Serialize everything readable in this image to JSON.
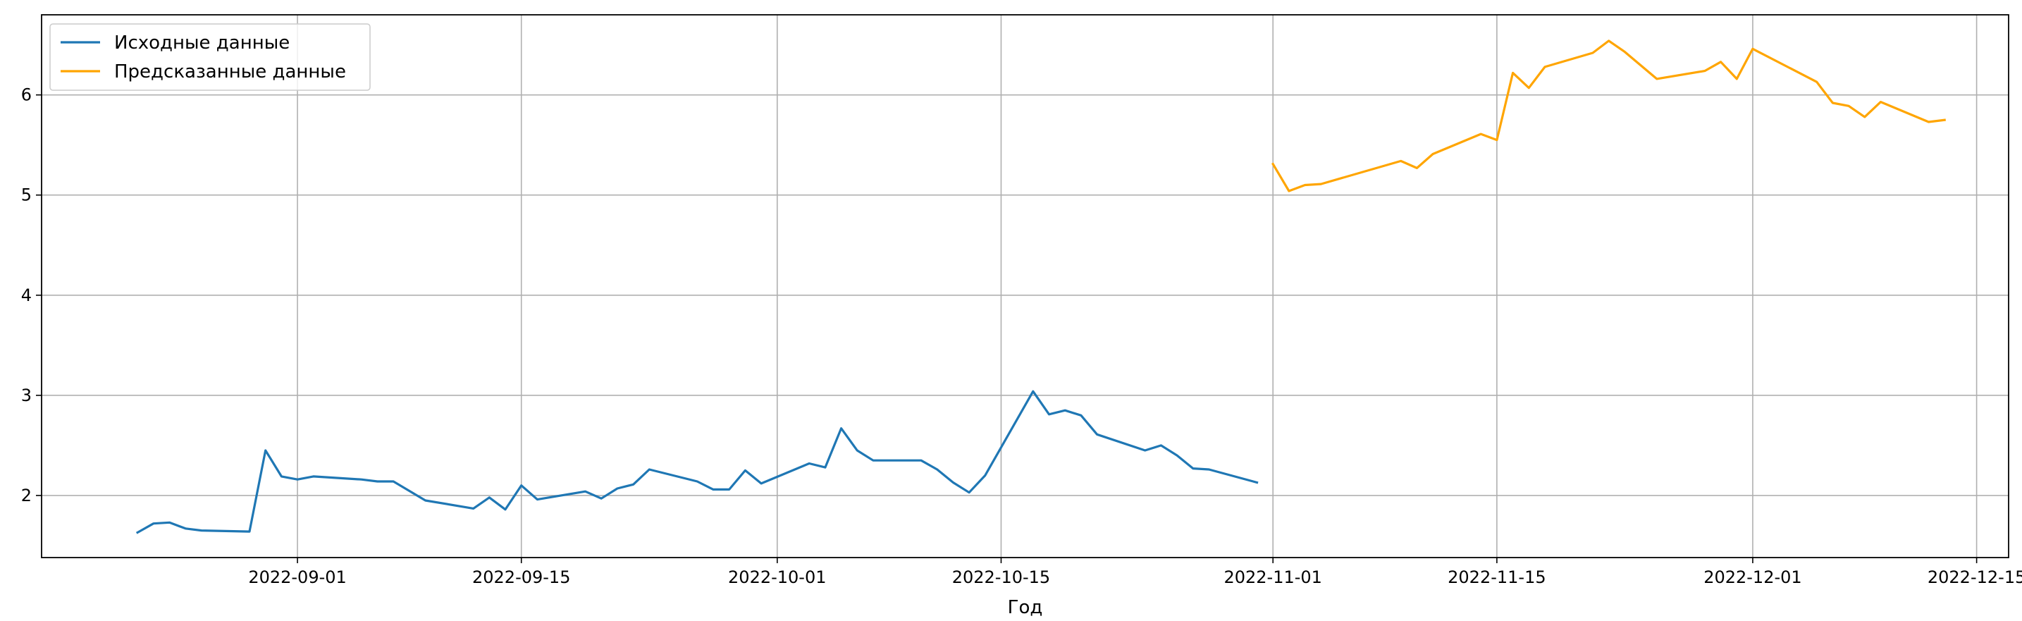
{
  "chart_data": {
    "type": "line",
    "xlabel": "Год",
    "ylabel": "",
    "grid": true,
    "legend_position": "top-left",
    "xlim": [
      "2022-08-16",
      "2022-12-17"
    ],
    "ylim": [
      1.38,
      6.8
    ],
    "x_ticks": [
      "2022-09-01",
      "2022-09-15",
      "2022-10-01",
      "2022-10-15",
      "2022-11-01",
      "2022-11-15",
      "2022-12-01",
      "2022-12-15"
    ],
    "y_ticks": [
      2,
      3,
      4,
      5,
      6
    ],
    "series": [
      {
        "name": "Исходные данные",
        "color": "#1f77b4",
        "points": [
          [
            "2022-08-22",
            1.63
          ],
          [
            "2022-08-23",
            1.72
          ],
          [
            "2022-08-24",
            1.73
          ],
          [
            "2022-08-25",
            1.67
          ],
          [
            "2022-08-26",
            1.65
          ],
          [
            "2022-08-29",
            1.64
          ],
          [
            "2022-08-30",
            2.45
          ],
          [
            "2022-08-31",
            2.19
          ],
          [
            "2022-09-01",
            2.16
          ],
          [
            "2022-09-02",
            2.19
          ],
          [
            "2022-09-05",
            2.16
          ],
          [
            "2022-09-06",
            2.14
          ],
          [
            "2022-09-07",
            2.14
          ],
          [
            "2022-09-09",
            1.95
          ],
          [
            "2022-09-12",
            1.87
          ],
          [
            "2022-09-13",
            1.98
          ],
          [
            "2022-09-14",
            1.86
          ],
          [
            "2022-09-15",
            2.1
          ],
          [
            "2022-09-16",
            1.96
          ],
          [
            "2022-09-19",
            2.04
          ],
          [
            "2022-09-20",
            1.97
          ],
          [
            "2022-09-21",
            2.07
          ],
          [
            "2022-09-22",
            2.11
          ],
          [
            "2022-09-23",
            2.26
          ],
          [
            "2022-09-26",
            2.14
          ],
          [
            "2022-09-27",
            2.06
          ],
          [
            "2022-09-28",
            2.06
          ],
          [
            "2022-09-29",
            2.25
          ],
          [
            "2022-09-30",
            2.12
          ],
          [
            "2022-10-03",
            2.32
          ],
          [
            "2022-10-04",
            2.28
          ],
          [
            "2022-10-05",
            2.67
          ],
          [
            "2022-10-06",
            2.45
          ],
          [
            "2022-10-07",
            2.35
          ],
          [
            "2022-10-10",
            2.35
          ],
          [
            "2022-10-11",
            2.26
          ],
          [
            "2022-10-12",
            2.13
          ],
          [
            "2022-10-13",
            2.03
          ],
          [
            "2022-10-14",
            2.2
          ],
          [
            "2022-10-17",
            3.04
          ],
          [
            "2022-10-18",
            2.81
          ],
          [
            "2022-10-19",
            2.85
          ],
          [
            "2022-10-20",
            2.8
          ],
          [
            "2022-10-21",
            2.61
          ],
          [
            "2022-10-24",
            2.45
          ],
          [
            "2022-10-25",
            2.5
          ],
          [
            "2022-10-26",
            2.4
          ],
          [
            "2022-10-27",
            2.27
          ],
          [
            "2022-10-28",
            2.26
          ],
          [
            "2022-10-31",
            2.13
          ]
        ]
      },
      {
        "name": "Предсказанные данные",
        "color": "#ffa500",
        "points": [
          [
            "2022-11-01",
            5.31
          ],
          [
            "2022-11-02",
            5.04
          ],
          [
            "2022-11-03",
            5.1
          ],
          [
            "2022-11-04",
            5.11
          ],
          [
            "2022-11-09",
            5.34
          ],
          [
            "2022-11-10",
            5.27
          ],
          [
            "2022-11-11",
            5.41
          ],
          [
            "2022-11-14",
            5.61
          ],
          [
            "2022-11-15",
            5.55
          ],
          [
            "2022-11-16",
            6.22
          ],
          [
            "2022-11-17",
            6.07
          ],
          [
            "2022-11-18",
            6.28
          ],
          [
            "2022-11-21",
            6.42
          ],
          [
            "2022-11-22",
            6.54
          ],
          [
            "2022-11-23",
            6.43
          ],
          [
            "2022-11-25",
            6.16
          ],
          [
            "2022-11-28",
            6.24
          ],
          [
            "2022-11-29",
            6.33
          ],
          [
            "2022-11-30",
            6.16
          ],
          [
            "2022-12-01",
            6.46
          ],
          [
            "2022-12-05",
            6.13
          ],
          [
            "2022-12-06",
            5.92
          ],
          [
            "2022-12-07",
            5.89
          ],
          [
            "2022-12-08",
            5.78
          ],
          [
            "2022-12-09",
            5.93
          ],
          [
            "2022-12-12",
            5.73
          ],
          [
            "2022-12-13",
            5.75
          ]
        ]
      }
    ]
  }
}
